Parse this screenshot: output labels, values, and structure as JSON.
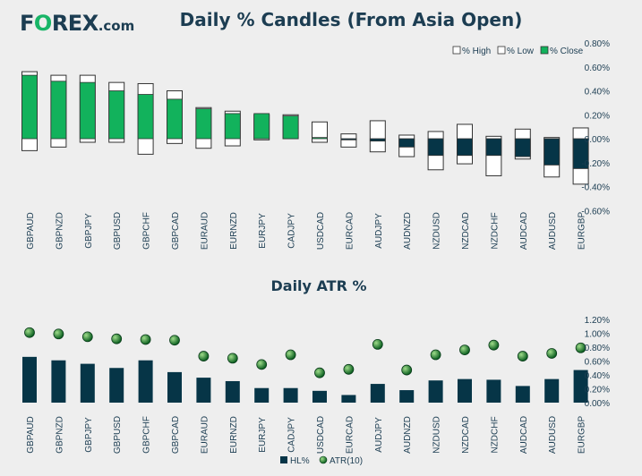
{
  "logo": {
    "f": "F",
    "o": "O",
    "rest": "REX",
    "dot_com": ".com"
  },
  "colors": {
    "dark": "#063547",
    "green": "#12b25c",
    "text": "#1c3d52",
    "bg": "#eeeeee",
    "dot_light": "#9fdc8a",
    "dot_dark": "#0a5e1f"
  },
  "chart_data": [
    {
      "type": "bar",
      "subtype": "candle",
      "title": "Daily % Candles (From Asia Open)",
      "categories": [
        "GBPAUD",
        "GBPNZD",
        "GBPJPY",
        "GBPUSD",
        "GBPCHF",
        "GBPCAD",
        "EURAUD",
        "EURNZD",
        "EURJPY",
        "CADJPY",
        "USDCAD",
        "EURCAD",
        "AUDJPY",
        "AUDNZD",
        "NZDUSD",
        "NZDCAD",
        "NZDCHF",
        "AUDCAD",
        "AUDUSD",
        "EURGBP"
      ],
      "series": [
        {
          "name": "% High",
          "values": [
            0.56,
            0.53,
            0.53,
            0.47,
            0.46,
            0.4,
            0.26,
            0.23,
            0.2,
            0.2,
            0.14,
            0.04,
            0.15,
            0.03,
            0.06,
            0.12,
            0.02,
            0.08,
            0.01,
            0.09
          ]
        },
        {
          "name": "% Low",
          "values": [
            -0.1,
            -0.07,
            -0.03,
            -0.03,
            -0.13,
            -0.04,
            -0.08,
            -0.06,
            -0.01,
            0.0,
            -0.03,
            -0.07,
            -0.11,
            -0.15,
            -0.26,
            -0.21,
            -0.31,
            -0.17,
            -0.32,
            -0.38
          ]
        },
        {
          "name": "% Close",
          "values": [
            0.53,
            0.48,
            0.47,
            0.4,
            0.37,
            0.33,
            0.25,
            0.21,
            0.21,
            0.19,
            0.01,
            -0.01,
            -0.02,
            -0.07,
            -0.14,
            -0.14,
            -0.14,
            -0.15,
            -0.22,
            -0.25
          ]
        }
      ],
      "yticks": [
        "0.80%",
        "0.60%",
        "0.40%",
        "0.20%",
        "0.00%",
        "-0.20%",
        "-0.40%",
        "-0.60%"
      ],
      "ylim": [
        -0.6,
        0.8
      ],
      "legend": [
        "% High",
        "% Low",
        "% Close"
      ],
      "legend_position": "top-right",
      "grid": false
    },
    {
      "type": "bar",
      "title": "Daily ATR %",
      "categories": [
        "GBPAUD",
        "GBPNZD",
        "GBPJPY",
        "GBPUSD",
        "GBPCHF",
        "GBPCAD",
        "EURAUD",
        "EURNZD",
        "EURJPY",
        "CADJPY",
        "USDCAD",
        "EURCAD",
        "AUDJPY",
        "AUDNZD",
        "NZDUSD",
        "NZDCAD",
        "NZDCHF",
        "AUDCAD",
        "AUDUSD",
        "EURGBP"
      ],
      "series": [
        {
          "name": "HL%",
          "type": "bar",
          "values": [
            0.66,
            0.61,
            0.56,
            0.5,
            0.61,
            0.44,
            0.36,
            0.31,
            0.21,
            0.21,
            0.17,
            0.11,
            0.27,
            0.18,
            0.32,
            0.34,
            0.33,
            0.24,
            0.34,
            0.47
          ]
        },
        {
          "name": "ATR(10)",
          "type": "scatter",
          "values": [
            1.01,
            0.99,
            0.95,
            0.92,
            0.91,
            0.9,
            0.67,
            0.64,
            0.55,
            0.69,
            0.43,
            0.48,
            0.84,
            0.47,
            0.69,
            0.76,
            0.83,
            0.67,
            0.71,
            0.79
          ]
        }
      ],
      "yticks": [
        "1.20%",
        "1.00%",
        "0.80%",
        "0.60%",
        "0.40%",
        "0.20%",
        "0.00%"
      ],
      "ylim": [
        0,
        1.2
      ],
      "legend": [
        "HL%",
        "ATR(10)"
      ],
      "legend_position": "bottom",
      "grid": false
    }
  ]
}
